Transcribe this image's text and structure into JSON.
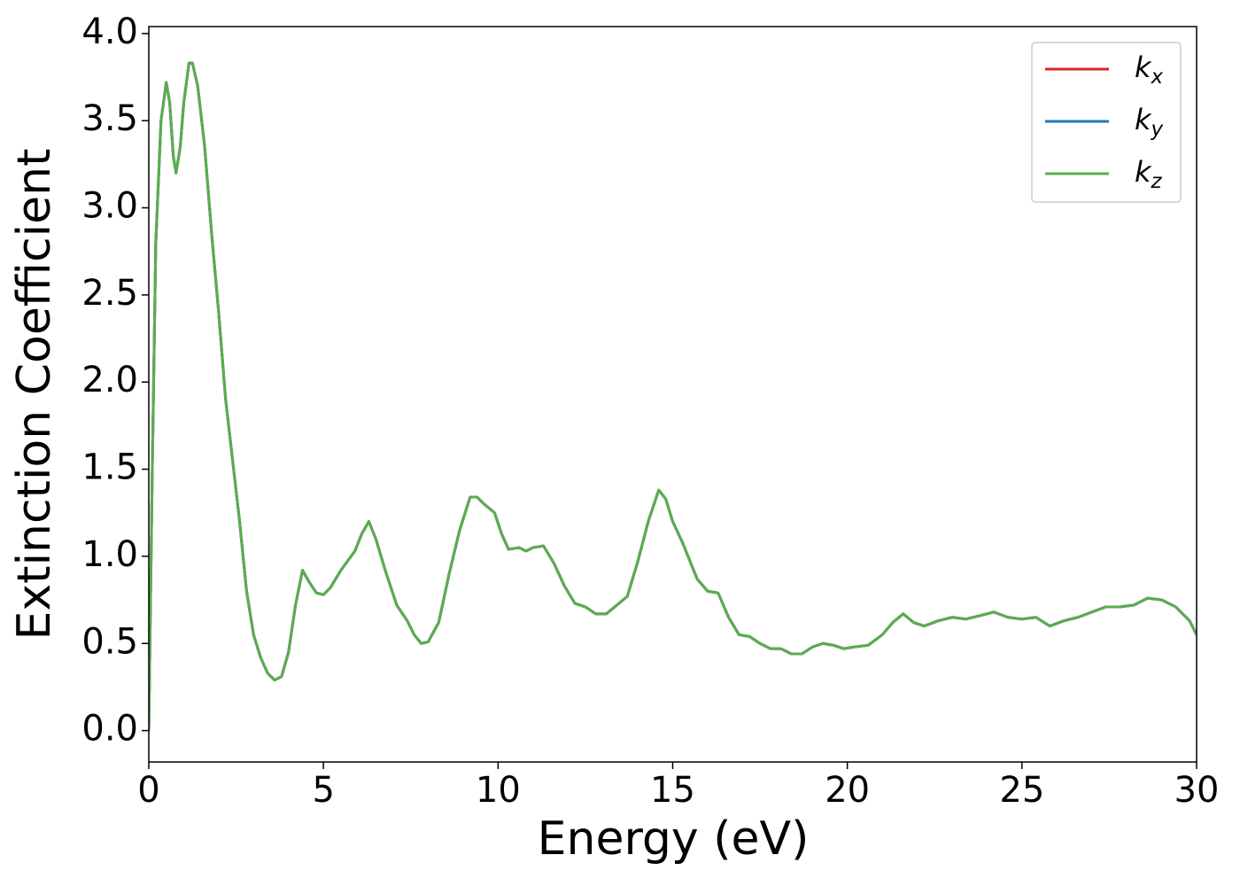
{
  "chart_data": {
    "type": "line",
    "xlabel": "Energy (eV)",
    "ylabel": "Extinction Coefficient",
    "xlim": [
      0,
      30
    ],
    "ylim": [
      -0.18,
      4.04
    ],
    "xticks": [
      0,
      5,
      10,
      15,
      20,
      25,
      30
    ],
    "yticks": [
      {
        "value": 0,
        "label": "0.0"
      },
      0.5,
      {
        "value": 1,
        "label": "1.0"
      },
      1.5,
      {
        "value": 2,
        "label": "2.0"
      },
      2.5,
      {
        "value": 3,
        "label": "3.0"
      },
      3.5,
      {
        "value": 4,
        "label": "4.0"
      }
    ],
    "grid": false,
    "legend": "upper right",
    "x": [
      0,
      0.1,
      0.2,
      0.35,
      0.5,
      0.6,
      0.7,
      0.78,
      0.9,
      1.0,
      1.15,
      1.25,
      1.4,
      1.6,
      1.8,
      2.0,
      2.2,
      2.4,
      2.6,
      2.8,
      3.0,
      3.2,
      3.4,
      3.6,
      3.8,
      4.0,
      4.2,
      4.4,
      4.6,
      4.8,
      5.0,
      5.2,
      5.5,
      5.9,
      6.1,
      6.3,
      6.5,
      6.8,
      7.1,
      7.4,
      7.6,
      7.8,
      8.0,
      8.3,
      8.6,
      8.9,
      9.2,
      9.4,
      9.6,
      9.9,
      10.1,
      10.3,
      10.6,
      10.8,
      11.0,
      11.3,
      11.6,
      11.9,
      12.2,
      12.5,
      12.8,
      13.1,
      13.4,
      13.7,
      14.0,
      14.3,
      14.6,
      14.8,
      15.0,
      15.3,
      15.7,
      16.0,
      16.3,
      16.6,
      16.9,
      17.2,
      17.5,
      17.8,
      18.1,
      18.4,
      18.7,
      19.0,
      19.3,
      19.6,
      19.9,
      20.2,
      20.6,
      21.0,
      21.3,
      21.6,
      21.9,
      22.2,
      22.6,
      23.0,
      23.4,
      23.8,
      24.2,
      24.6,
      25.0,
      25.4,
      25.8,
      26.2,
      26.6,
      27.0,
      27.4,
      27.8,
      28.2,
      28.6,
      29.0,
      29.4,
      29.8,
      30.0
    ],
    "series": [
      {
        "name": "kx",
        "color": "#d62728",
        "values": [
          0,
          1.5,
          2.8,
          3.5,
          3.72,
          3.6,
          3.3,
          3.2,
          3.35,
          3.6,
          3.83,
          3.83,
          3.7,
          3.35,
          2.85,
          2.4,
          1.9,
          1.55,
          1.2,
          0.8,
          0.55,
          0.42,
          0.33,
          0.29,
          0.31,
          0.45,
          0.72,
          0.92,
          0.85,
          0.79,
          0.78,
          0.82,
          0.92,
          1.03,
          1.13,
          1.2,
          1.1,
          0.9,
          0.72,
          0.63,
          0.55,
          0.5,
          0.51,
          0.62,
          0.9,
          1.15,
          1.34,
          1.34,
          1.3,
          1.25,
          1.13,
          1.04,
          1.05,
          1.03,
          1.05,
          1.06,
          0.96,
          0.83,
          0.73,
          0.71,
          0.67,
          0.67,
          0.72,
          0.77,
          0.97,
          1.2,
          1.38,
          1.33,
          1.2,
          1.07,
          0.87,
          0.8,
          0.79,
          0.65,
          0.55,
          0.54,
          0.5,
          0.47,
          0.47,
          0.44,
          0.44,
          0.48,
          0.5,
          0.49,
          0.47,
          0.48,
          0.49,
          0.55,
          0.62,
          0.67,
          0.62,
          0.6,
          0.63,
          0.65,
          0.64,
          0.66,
          0.68,
          0.65,
          0.64,
          0.65,
          0.6,
          0.63,
          0.65,
          0.68,
          0.71,
          0.71,
          0.72,
          0.76,
          0.75,
          0.71,
          0.63,
          0.55
        ]
      },
      {
        "name": "ky",
        "color": "#1f77b4",
        "values": [
          0,
          1.5,
          2.8,
          3.5,
          3.72,
          3.6,
          3.3,
          3.2,
          3.35,
          3.6,
          3.83,
          3.83,
          3.7,
          3.35,
          2.85,
          2.4,
          1.9,
          1.55,
          1.2,
          0.8,
          0.55,
          0.42,
          0.33,
          0.29,
          0.31,
          0.45,
          0.72,
          0.92,
          0.85,
          0.79,
          0.78,
          0.82,
          0.92,
          1.03,
          1.13,
          1.2,
          1.1,
          0.9,
          0.72,
          0.63,
          0.55,
          0.5,
          0.51,
          0.62,
          0.9,
          1.15,
          1.34,
          1.34,
          1.3,
          1.25,
          1.13,
          1.04,
          1.05,
          1.03,
          1.05,
          1.06,
          0.96,
          0.83,
          0.73,
          0.71,
          0.67,
          0.67,
          0.72,
          0.77,
          0.97,
          1.2,
          1.38,
          1.33,
          1.2,
          1.07,
          0.87,
          0.8,
          0.79,
          0.65,
          0.55,
          0.54,
          0.5,
          0.47,
          0.47,
          0.44,
          0.44,
          0.48,
          0.5,
          0.49,
          0.47,
          0.48,
          0.49,
          0.55,
          0.62,
          0.67,
          0.62,
          0.6,
          0.63,
          0.65,
          0.64,
          0.66,
          0.68,
          0.65,
          0.64,
          0.65,
          0.6,
          0.63,
          0.65,
          0.68,
          0.71,
          0.71,
          0.72,
          0.76,
          0.75,
          0.71,
          0.63,
          0.55
        ]
      },
      {
        "name": "kz",
        "color": "#5aad4e",
        "values": [
          0,
          1.5,
          2.8,
          3.5,
          3.72,
          3.6,
          3.3,
          3.2,
          3.35,
          3.6,
          3.83,
          3.83,
          3.7,
          3.35,
          2.85,
          2.4,
          1.9,
          1.55,
          1.2,
          0.8,
          0.55,
          0.42,
          0.33,
          0.29,
          0.31,
          0.45,
          0.72,
          0.92,
          0.85,
          0.79,
          0.78,
          0.82,
          0.92,
          1.03,
          1.13,
          1.2,
          1.1,
          0.9,
          0.72,
          0.63,
          0.55,
          0.5,
          0.51,
          0.62,
          0.9,
          1.15,
          1.34,
          1.34,
          1.3,
          1.25,
          1.13,
          1.04,
          1.05,
          1.03,
          1.05,
          1.06,
          0.96,
          0.83,
          0.73,
          0.71,
          0.67,
          0.67,
          0.72,
          0.77,
          0.97,
          1.2,
          1.38,
          1.33,
          1.2,
          1.07,
          0.87,
          0.8,
          0.79,
          0.65,
          0.55,
          0.54,
          0.5,
          0.47,
          0.47,
          0.44,
          0.44,
          0.48,
          0.5,
          0.49,
          0.47,
          0.48,
          0.49,
          0.55,
          0.62,
          0.67,
          0.62,
          0.6,
          0.63,
          0.65,
          0.64,
          0.66,
          0.68,
          0.65,
          0.64,
          0.65,
          0.6,
          0.63,
          0.65,
          0.68,
          0.71,
          0.71,
          0.72,
          0.76,
          0.75,
          0.71,
          0.63,
          0.55
        ]
      }
    ]
  }
}
